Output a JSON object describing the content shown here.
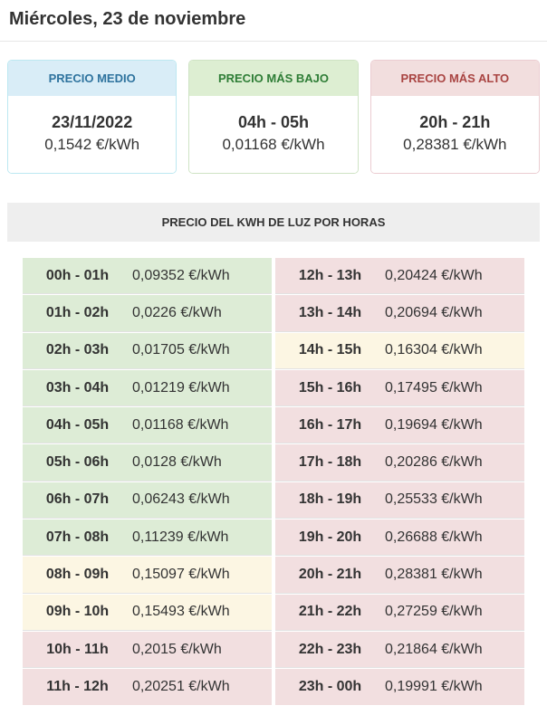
{
  "page": {
    "title": "Miércoles, 23 de noviembre",
    "section_title": "PRECIO DEL KWH DE LUZ POR HORAS"
  },
  "summary_cards": [
    {
      "label": "PRECIO MEDIO",
      "value": "23/11/2022",
      "price": "0,1542 €/kWh",
      "style": "info"
    },
    {
      "label": "PRECIO MÁS BAJO",
      "value": "04h - 05h",
      "price": "0,01168 €/kWh",
      "style": "success"
    },
    {
      "label": "PRECIO MÁS ALTO",
      "value": "20h - 21h",
      "price": "0,28381 €/kWh",
      "style": "danger"
    }
  ],
  "price_table": {
    "left": [
      {
        "hours": "00h - 01h",
        "price": "0,09352 €/kWh",
        "level": "low"
      },
      {
        "hours": "01h - 02h",
        "price": "0,0226 €/kWh",
        "level": "low"
      },
      {
        "hours": "02h - 03h",
        "price": "0,01705 €/kWh",
        "level": "low"
      },
      {
        "hours": "03h - 04h",
        "price": "0,01219 €/kWh",
        "level": "low"
      },
      {
        "hours": "04h - 05h",
        "price": "0,01168 €/kWh",
        "level": "low"
      },
      {
        "hours": "05h - 06h",
        "price": "0,0128 €/kWh",
        "level": "low"
      },
      {
        "hours": "06h - 07h",
        "price": "0,06243 €/kWh",
        "level": "low"
      },
      {
        "hours": "07h - 08h",
        "price": "0,11239 €/kWh",
        "level": "low"
      },
      {
        "hours": "08h - 09h",
        "price": "0,15097 €/kWh",
        "level": "mid"
      },
      {
        "hours": "09h - 10h",
        "price": "0,15493 €/kWh",
        "level": "mid"
      },
      {
        "hours": "10h - 11h",
        "price": "0,2015 €/kWh",
        "level": "high"
      },
      {
        "hours": "11h - 12h",
        "price": "0,20251 €/kWh",
        "level": "high"
      }
    ],
    "right": [
      {
        "hours": "12h - 13h",
        "price": "0,20424 €/kWh",
        "level": "high"
      },
      {
        "hours": "13h - 14h",
        "price": "0,20694 €/kWh",
        "level": "high"
      },
      {
        "hours": "14h - 15h",
        "price": "0,16304 €/kWh",
        "level": "mid"
      },
      {
        "hours": "15h - 16h",
        "price": "0,17495 €/kWh",
        "level": "high"
      },
      {
        "hours": "16h - 17h",
        "price": "0,19694 €/kWh",
        "level": "high"
      },
      {
        "hours": "17h - 18h",
        "price": "0,20286 €/kWh",
        "level": "high"
      },
      {
        "hours": "18h - 19h",
        "price": "0,25533 €/kWh",
        "level": "high"
      },
      {
        "hours": "19h - 20h",
        "price": "0,26688 €/kWh",
        "level": "high"
      },
      {
        "hours": "20h - 21h",
        "price": "0,28381 €/kWh",
        "level": "high"
      },
      {
        "hours": "21h - 22h",
        "price": "0,27259 €/kWh",
        "level": "high"
      },
      {
        "hours": "22h - 23h",
        "price": "0,21864 €/kWh",
        "level": "high"
      },
      {
        "hours": "23h - 00h",
        "price": "0,19991 €/kWh",
        "level": "high"
      }
    ]
  },
  "colors": {
    "info_header_bg": "#d9edf7",
    "info_border": "#bce8f1",
    "info_text": "#2e739e",
    "success_header_bg": "#ddeed2",
    "success_border": "#cfe3c4",
    "success_text": "#2e7d36",
    "danger_header_bg": "#f2dede",
    "danger_border": "#ebccd1",
    "danger_text": "#a94442",
    "row_low_bg": "#ddecd6",
    "row_mid_bg": "#fcf6e3",
    "row_high_bg": "#f2dfe0",
    "section_bar_bg": "#eeeeee",
    "text": "#333333"
  }
}
